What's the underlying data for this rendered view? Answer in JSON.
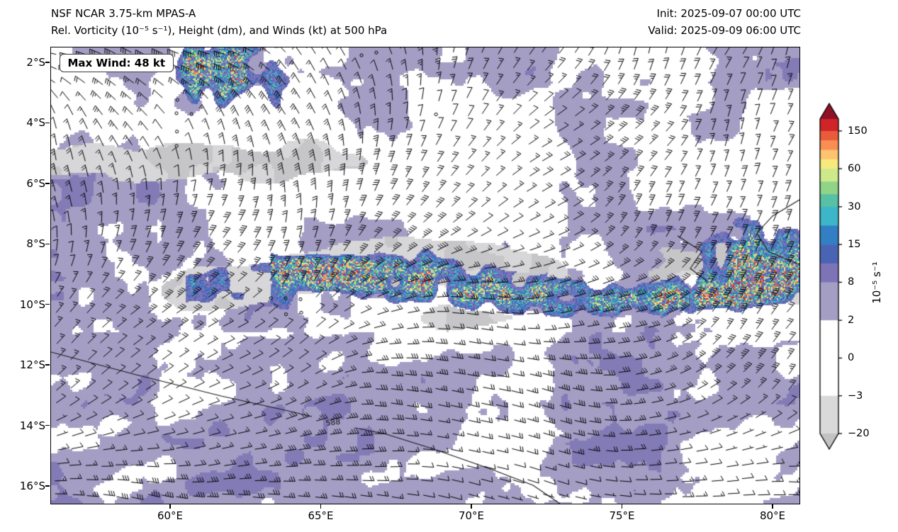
{
  "header": {
    "model": "NSF NCAR 3.75-km MPAS-A",
    "product": "Rel. Vorticity (10⁻⁵ s⁻¹), Height (dm), and Winds (kt) at 500 hPa",
    "init": "Init: 2025-09-07 00:00 UTC",
    "valid": "Valid: 2025-09-09 06:00 UTC"
  },
  "annotations": {
    "max_wind": "Max Wind: 48 kt",
    "contour_label": "588"
  },
  "chart_data": {
    "type": "heatmap",
    "title": "Rel. Vorticity (10⁻⁵ s⁻¹), Height (dm), and Winds (kt) at 500 hPa",
    "model": "NSF NCAR 3.75-km MPAS-A",
    "level": "500 hPa",
    "init_time": "2025-09-07 00:00 UTC",
    "valid_time": "2025-09-09 06:00 UTC",
    "max_wind_kt": 48,
    "wind_units": "kt",
    "height_units": "dm",
    "height_contours_dm": [
      588
    ],
    "x_ticks": [
      "60°E",
      "65°E",
      "70°E",
      "75°E",
      "80°E"
    ],
    "y_ticks": [
      "2°S",
      "4°S",
      "6°S",
      "8°S",
      "10°S",
      "12°S",
      "14°S",
      "16°S"
    ],
    "xlim_est": [
      "56°E",
      "81°E"
    ],
    "ylim_est": [
      "16.6°S",
      "1.5°S"
    ],
    "grid": false,
    "colorbar": {
      "label": "10⁻⁵ s⁻¹",
      "ticks": [
        "150",
        "60",
        "30",
        "15",
        "8",
        "2",
        "0",
        "−3",
        "−20"
      ],
      "boundaries": [
        -20,
        -3,
        0,
        2,
        8,
        15,
        30,
        60,
        150
      ],
      "over_color": "#8f1127",
      "under_color": "#c2c2c2",
      "segments": [
        {
          "f0": 0.0,
          "f1": 0.038,
          "color": "#cf2428"
        },
        {
          "f0": 0.038,
          "f1": 0.068,
          "color": "#ea5b39"
        },
        {
          "f0": 0.068,
          "f1": 0.098,
          "color": "#f98e52"
        },
        {
          "f0": 0.098,
          "f1": 0.128,
          "color": "#fdc370"
        },
        {
          "f0": 0.128,
          "f1": 0.158,
          "color": "#f7e97d"
        },
        {
          "f0": 0.158,
          "f1": 0.199,
          "color": "#cde98c"
        },
        {
          "f0": 0.199,
          "f1": 0.239,
          "color": "#8fd487"
        },
        {
          "f0": 0.239,
          "f1": 0.279,
          "color": "#58c0a3"
        },
        {
          "f0": 0.279,
          "f1": 0.339,
          "color": "#3cb6c8"
        },
        {
          "f0": 0.339,
          "f1": 0.399,
          "color": "#337fc3"
        },
        {
          "f0": 0.399,
          "f1": 0.459,
          "color": "#4a64b4"
        },
        {
          "f0": 0.459,
          "f1": 0.519,
          "color": "#7d74b8"
        },
        {
          "f0": 0.519,
          "f1": 0.64,
          "color": "#a49ec5"
        },
        {
          "f0": 0.64,
          "f1": 0.88,
          "color": "#ffffff"
        },
        {
          "f0": 0.88,
          "f1": 1.0,
          "color": "#d9d9d9"
        }
      ]
    }
  },
  "map": {
    "background": "#ffffff",
    "fill_color": "#a49ec5",
    "fill_dark": "#837bb5",
    "gray1": "#d7d6d8",
    "gray2": "#c6c5c8",
    "barb_color": "#000000",
    "speckles": [
      "#7d74b8",
      "#4a64b4",
      "#337fc3",
      "#3cb6c8",
      "#58c0a3",
      "#8fd487",
      "#cde98c",
      "#f7e97d",
      "#fdc370",
      "#f98e52",
      "#ea5b39",
      "#cf2428"
    ]
  }
}
